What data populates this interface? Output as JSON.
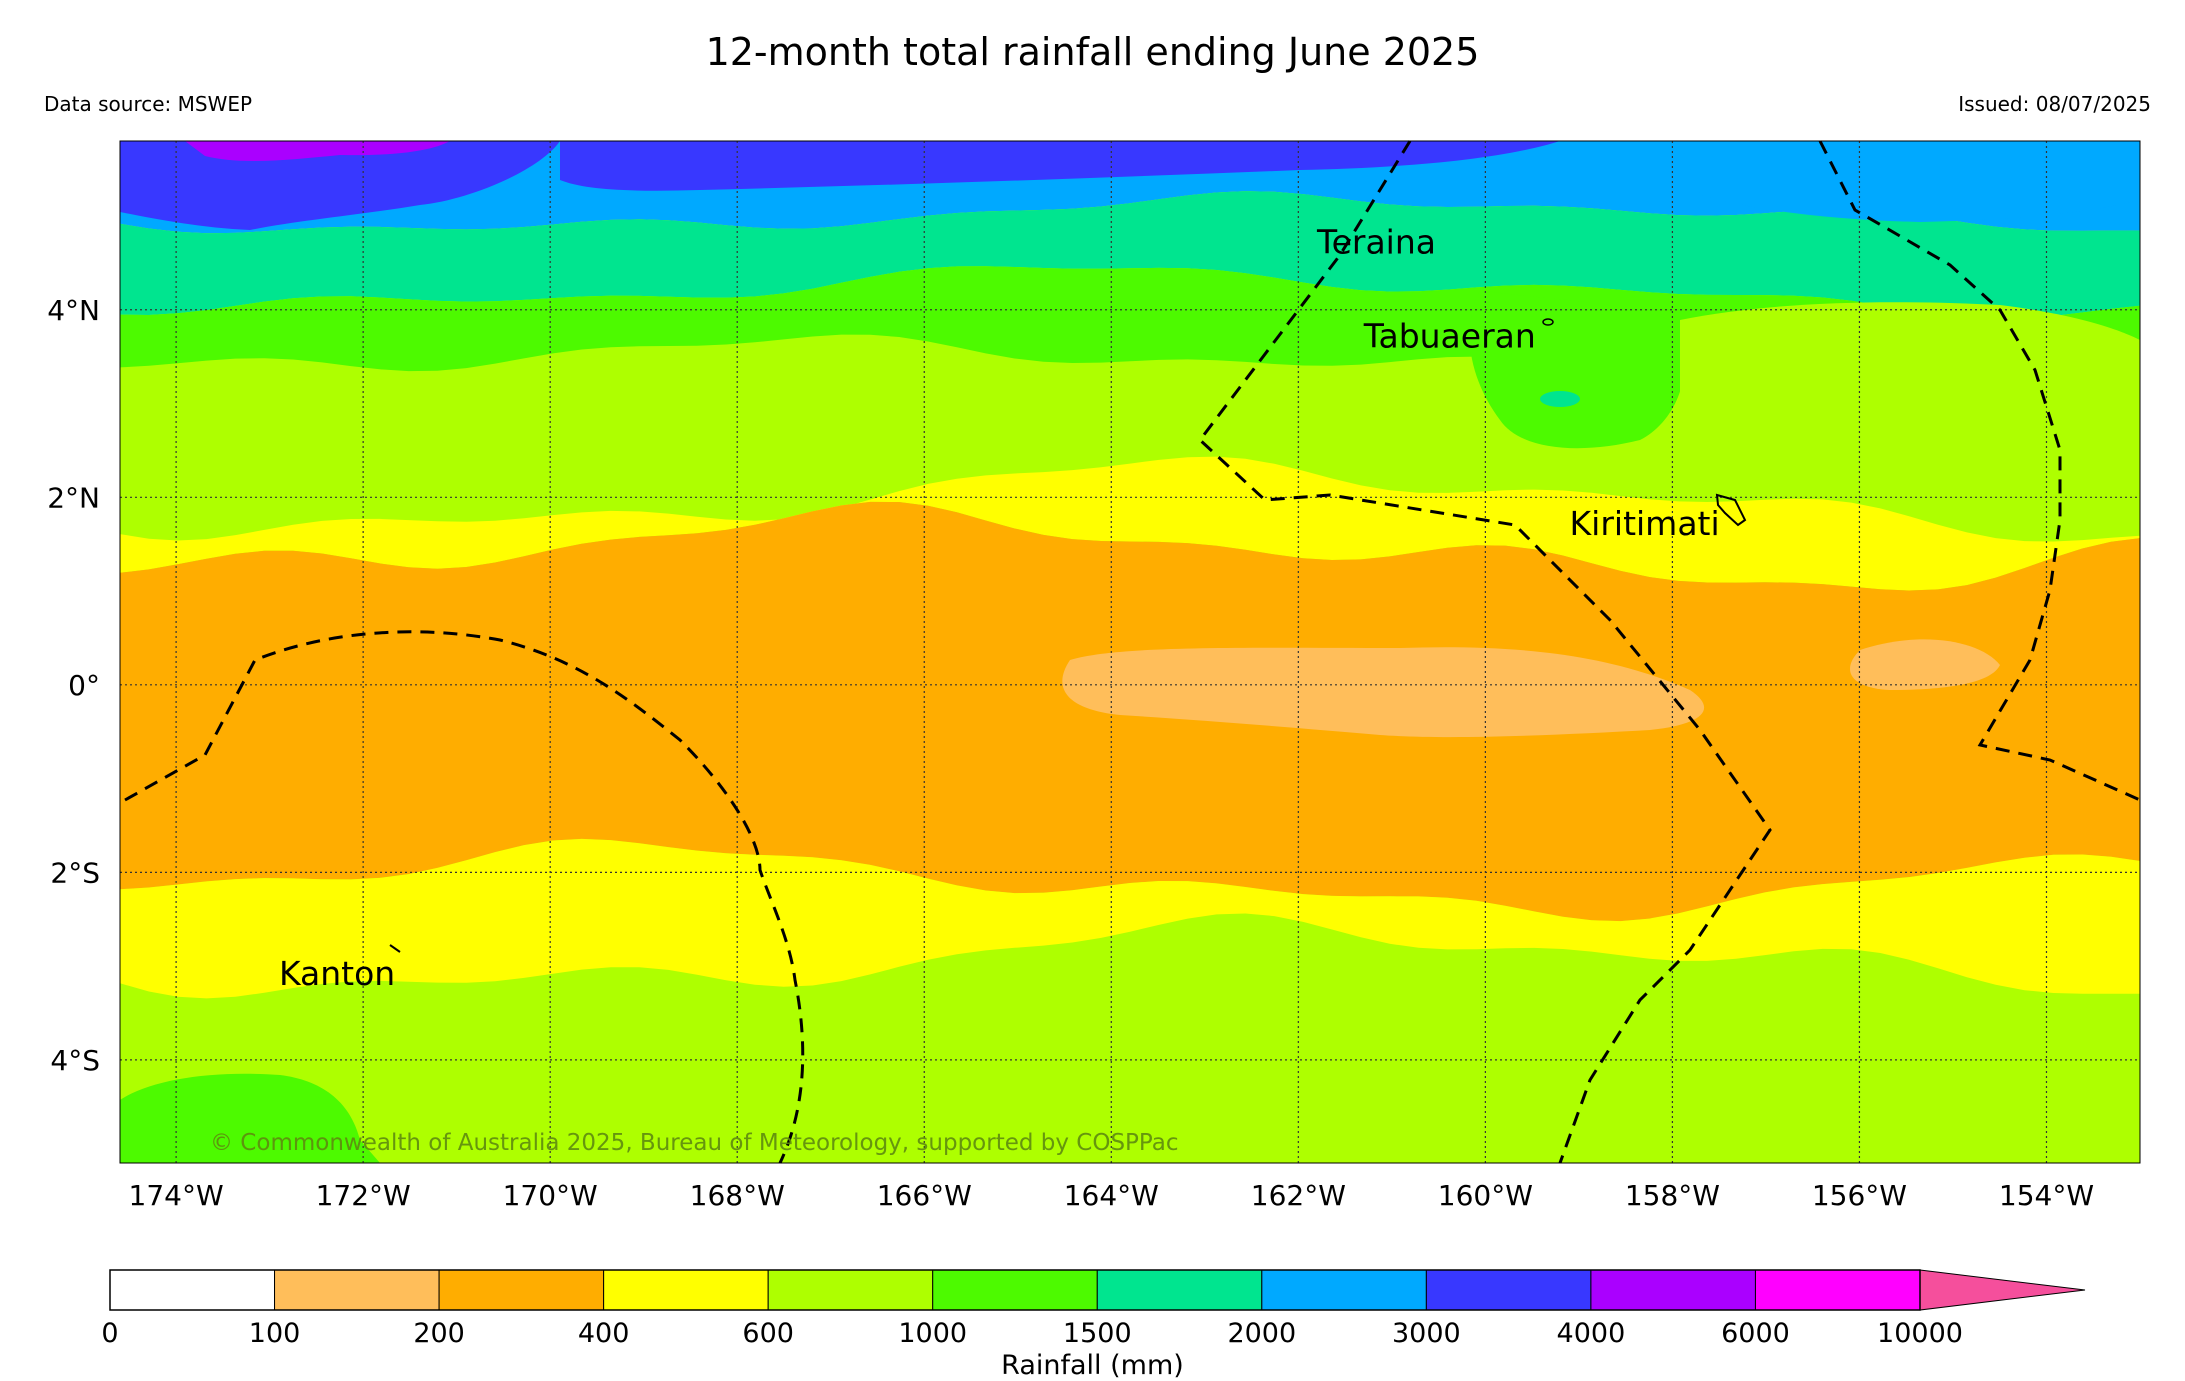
{
  "title": "12-month total rainfall ending June 2025",
  "data_source": "Data source: MSWEP",
  "issued": "Issued: 08/07/2025",
  "copyright": "© Commonwealth of Australia 2025, Bureau of Meteorology, supported by COSPPac",
  "map": {
    "lon_range": [
      -174.6,
      -153.0
    ],
    "lat_range": [
      -5.1,
      5.8
    ],
    "lon_ticks": [
      {
        "value": -174,
        "label": "174°W"
      },
      {
        "value": -172,
        "label": "172°W"
      },
      {
        "value": -170,
        "label": "170°W"
      },
      {
        "value": -168,
        "label": "168°W"
      },
      {
        "value": -166,
        "label": "166°W"
      },
      {
        "value": -164,
        "label": "164°W"
      },
      {
        "value": -162,
        "label": "162°W"
      },
      {
        "value": -160,
        "label": "160°W"
      },
      {
        "value": -158,
        "label": "158°W"
      },
      {
        "value": -156,
        "label": "156°W"
      },
      {
        "value": -154,
        "label": "154°W"
      }
    ],
    "lat_ticks": [
      {
        "value": 4,
        "label": "4°N"
      },
      {
        "value": 2,
        "label": "2°N"
      },
      {
        "value": 0,
        "label": "0°"
      },
      {
        "value": -2,
        "label": "2°S"
      },
      {
        "value": -4,
        "label": "4°S"
      }
    ],
    "places": [
      {
        "name": "Teraina",
        "lon": -161.8,
        "lat": 4.6
      },
      {
        "name": "Tabuaeran",
        "lon": -161.3,
        "lat": 3.6
      },
      {
        "name": "Kiritimati",
        "lon": -159.1,
        "lat": 1.6
      },
      {
        "name": "Kanton",
        "lon": -172.9,
        "lat": -3.2
      }
    ]
  },
  "colorbar": {
    "title": "Rainfall (mm)",
    "extend_color": "#f54f9c",
    "bins": [
      {
        "label": "0",
        "color": "#ffffff"
      },
      {
        "label": "100",
        "color": "#ffbe5a"
      },
      {
        "label": "200",
        "color": "#ffad00"
      },
      {
        "label": "400",
        "color": "#ffff00"
      },
      {
        "label": "600",
        "color": "#aeff00"
      },
      {
        "label": "1000",
        "color": "#4dfa00"
      },
      {
        "label": "1500",
        "color": "#00e58f"
      },
      {
        "label": "2000",
        "color": "#00a9ff"
      },
      {
        "label": "3000",
        "color": "#3838ff"
      },
      {
        "label": "4000",
        "color": "#aa00ff"
      },
      {
        "label": "6000",
        "color": "#ff00ff"
      }
    ],
    "end_label": "10000"
  }
}
